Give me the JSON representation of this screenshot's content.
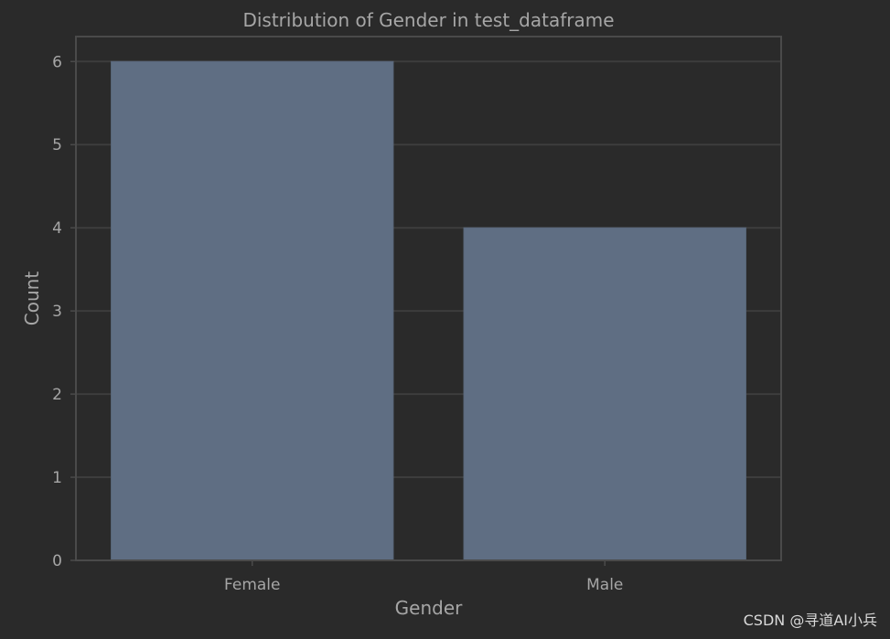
{
  "chart_data": {
    "type": "bar",
    "title": "Distribution of Gender in test_dataframe",
    "xlabel": "Gender",
    "ylabel": "Count",
    "categories": [
      "Female",
      "Male"
    ],
    "values": [
      6,
      4
    ],
    "ylim": [
      0,
      6.3
    ],
    "yticks": [
      0,
      1,
      2,
      3,
      4,
      5,
      6
    ],
    "grid": true,
    "legend": "none",
    "colors": {
      "background": "#2a2a2a",
      "bar": "#5f6e83",
      "grid": "#3d3d3d",
      "frame": "#4a4a4a",
      "text": "#a6a6a6"
    }
  },
  "watermark": "CSDN @寻道AI小兵"
}
